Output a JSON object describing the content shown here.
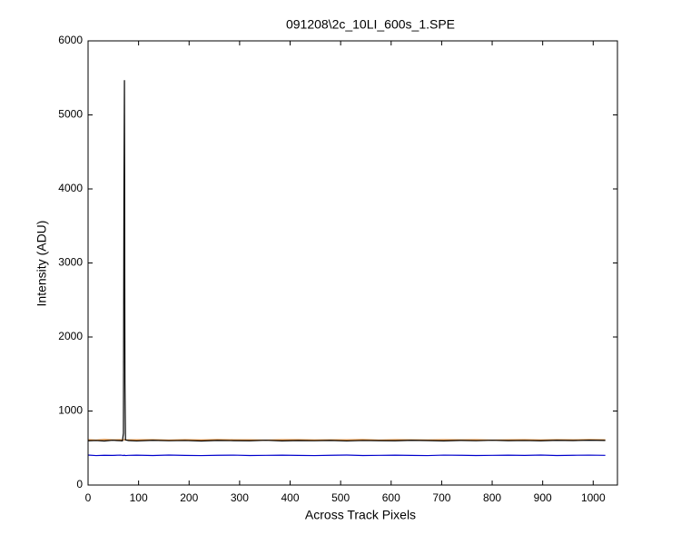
{
  "chart_data": {
    "type": "line",
    "title": "091208\\2c_10LI_600s_1.SPE",
    "x_label": "Across Track Pixels",
    "y_label": "Intensity (ADU)",
    "x": [
      0,
      16,
      32,
      48,
      64,
      68,
      70,
      71,
      72,
      73,
      74,
      80,
      96,
      128,
      160,
      192,
      224,
      256,
      288,
      320,
      352,
      384,
      416,
      448,
      480,
      512,
      544,
      576,
      608,
      640,
      672,
      704,
      736,
      768,
      800,
      832,
      864,
      896,
      928,
      960,
      992,
      1024
    ],
    "series": [
      {
        "color": "#d9822b",
        "values": [
          612,
          608,
          615,
          610,
          613,
          609,
          611,
          612,
          614,
          610,
          608,
          611,
          610,
          613,
          608,
          612,
          609,
          614,
          611,
          610,
          607,
          612,
          613,
          609,
          611,
          610,
          614,
          608,
          612,
          611,
          609,
          613,
          610,
          612,
          608,
          611,
          613,
          609,
          612,
          610,
          614,
          611
        ]
      },
      {
        "color": "#000000",
        "values": [
          598,
          602,
          595,
          605,
          600,
          597,
          700,
          3840,
          5470,
          1380,
          610,
          601,
          596,
          604,
          599,
          602,
          595,
          603,
          600,
          598,
          605,
          597,
          601,
          599,
          603,
          596,
          602,
          600,
          598,
          604,
          601,
          597,
          603,
          599,
          605,
          600,
          602,
          598,
          604,
          601,
          606,
          603
        ]
      },
      {
        "color": "#0000cc",
        "values": [
          405,
          398,
          402,
          400,
          404,
          401,
          399,
          403,
          400,
          402,
          398,
          401,
          403,
          399,
          405,
          400,
          398,
          402,
          404,
          399,
          401,
          403,
          400,
          398,
          402,
          405,
          399,
          401,
          403,
          400,
          398,
          404,
          402,
          399,
          401,
          403,
          400,
          405,
          399,
          402,
          404,
          401
        ]
      }
    ],
    "xlim": [
      0,
      1048
    ],
    "ylim": [
      0,
      6000
    ],
    "xticks": [
      0,
      100,
      200,
      300,
      400,
      500,
      600,
      700,
      800,
      900,
      1000
    ],
    "yticks": [
      0,
      1000,
      2000,
      3000,
      4000,
      5000,
      6000
    ],
    "grid": false
  }
}
